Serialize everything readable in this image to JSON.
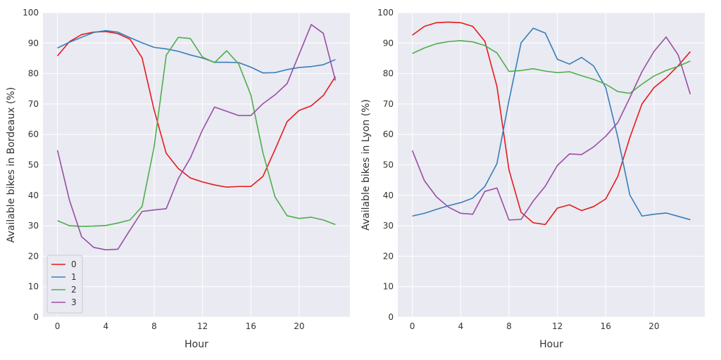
{
  "chart_data": [
    {
      "type": "line",
      "title": "",
      "xlabel": "Hour",
      "ylabel": "Available bikes in Bordeaux (%)",
      "xlim": [
        -1.2,
        24.2
      ],
      "ylim": [
        0,
        100
      ],
      "xticks": [
        0,
        4,
        8,
        12,
        16,
        20
      ],
      "yticks": [
        0,
        10,
        20,
        30,
        40,
        50,
        60,
        70,
        80,
        90,
        100
      ],
      "grid": true,
      "legend": "bottom-left",
      "x": [
        0,
        1,
        2,
        3,
        4,
        5,
        6,
        7,
        8,
        9,
        10,
        11,
        12,
        13,
        14,
        15,
        16,
        17,
        18,
        19,
        20,
        21,
        22,
        23
      ],
      "series": [
        {
          "name": "0",
          "color": "#e41a1c",
          "values": [
            85.8,
            90.5,
            92.8,
            93.6,
            93.8,
            93.1,
            91.3,
            85.2,
            68.0,
            53.8,
            48.8,
            45.7,
            44.4,
            43.4,
            42.7,
            42.9,
            42.9,
            46.2,
            55.0,
            64.2,
            67.9,
            69.4,
            72.8,
            79.0
          ]
        },
        {
          "name": "1",
          "color": "#377eb8",
          "values": [
            88.4,
            90.3,
            91.9,
            93.5,
            94.1,
            93.6,
            91.8,
            90.1,
            88.6,
            88.1,
            87.3,
            86.1,
            85.1,
            83.7,
            83.7,
            83.6,
            82.1,
            80.2,
            80.3,
            81.3,
            82.0,
            82.3,
            82.9,
            84.6
          ]
        },
        {
          "name": "2",
          "color": "#4daf4a",
          "values": [
            31.7,
            30.0,
            29.8,
            29.9,
            30.1,
            30.9,
            31.9,
            36.3,
            56.0,
            86.0,
            91.9,
            91.5,
            85.4,
            83.6,
            87.5,
            83.1,
            73.0,
            54.0,
            39.5,
            33.3,
            32.4,
            32.8,
            31.9,
            30.4
          ]
        },
        {
          "name": "3",
          "color": "#984ea3",
          "values": [
            54.8,
            38.3,
            26.4,
            22.9,
            22.1,
            22.3,
            28.6,
            34.7,
            35.2,
            35.6,
            45.5,
            52.3,
            61.5,
            69.0,
            67.6,
            66.2,
            66.2,
            70.1,
            73.0,
            76.7,
            86.4,
            96.1,
            93.2,
            77.7
          ]
        }
      ]
    },
    {
      "type": "line",
      "title": "",
      "xlabel": "Hour",
      "ylabel": "Available bikes in Lyon (%)",
      "xlim": [
        -1.2,
        24.2
      ],
      "ylim": [
        0,
        100
      ],
      "xticks": [
        0,
        4,
        8,
        12,
        16,
        20
      ],
      "yticks": [
        0,
        10,
        20,
        30,
        40,
        50,
        60,
        70,
        80,
        90,
        100
      ],
      "grid": true,
      "legend": "none",
      "x": [
        0,
        1,
        2,
        3,
        4,
        5,
        6,
        7,
        8,
        9,
        10,
        11,
        12,
        13,
        14,
        15,
        16,
        17,
        18,
        19,
        20,
        21,
        22,
        23
      ],
      "series": [
        {
          "name": "0",
          "color": "#e41a1c",
          "values": [
            92.6,
            95.5,
            96.7,
            96.9,
            96.7,
            95.5,
            90.6,
            75.8,
            48.3,
            34.4,
            31.0,
            30.4,
            35.8,
            36.9,
            35.0,
            36.3,
            38.8,
            46.2,
            59.0,
            70.0,
            75.4,
            78.6,
            82.6,
            87.2
          ]
        },
        {
          "name": "1",
          "color": "#377eb8",
          "values": [
            33.2,
            34.1,
            35.4,
            36.6,
            37.6,
            39.1,
            42.9,
            50.4,
            71.2,
            90.1,
            94.9,
            93.3,
            84.7,
            83.1,
            85.3,
            82.5,
            75.4,
            59.1,
            40.1,
            33.2,
            33.8,
            34.2,
            33.1,
            32.0
          ]
        },
        {
          "name": "2",
          "color": "#4daf4a",
          "values": [
            86.6,
            88.4,
            89.8,
            90.5,
            90.8,
            90.4,
            89.2,
            86.8,
            80.7,
            81.0,
            81.6,
            80.8,
            80.3,
            80.6,
            79.3,
            78.1,
            76.5,
            74.1,
            73.5,
            76.5,
            79.2,
            81.0,
            82.4,
            84.1
          ]
        },
        {
          "name": "3",
          "color": "#984ea3",
          "values": [
            54.7,
            44.8,
            39.5,
            36.1,
            34.1,
            33.8,
            41.3,
            42.4,
            31.9,
            32.1,
            38.1,
            43.0,
            49.8,
            53.6,
            53.4,
            55.9,
            59.4,
            63.9,
            72.1,
            80.6,
            87.3,
            92.0,
            86.1,
            73.2
          ]
        }
      ]
    }
  ]
}
